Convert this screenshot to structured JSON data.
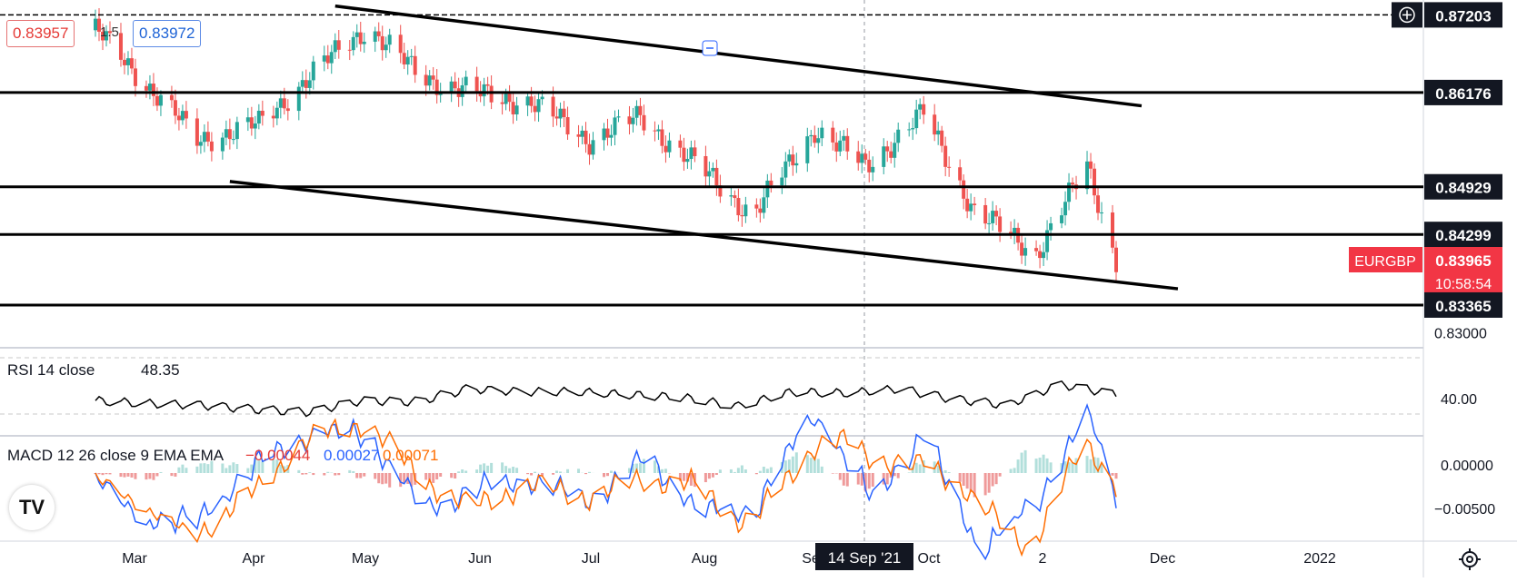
{
  "header": {
    "sell_price": "0.83957",
    "spread": "1.5",
    "buy_price": "0.83972"
  },
  "symbol_badge": "EURGBP",
  "countdown": "10:58:54",
  "crosshair_date": "14 Sep '21",
  "brand": "TV",
  "colors": {
    "up": "#26a69a",
    "down": "#ef5350",
    "macd": "#2962ff",
    "signal": "#ff6d00",
    "badge": "#f23645",
    "label_bg": "#131722"
  },
  "price_levels": [
    {
      "value": "0.87203",
      "plus_icon": "plus-circle-icon"
    },
    {
      "value": "0.86176"
    },
    {
      "value": "0.84929"
    },
    {
      "value": "0.84299"
    },
    {
      "value": "0.83965",
      "current": true
    },
    {
      "value": "0.83365"
    }
  ],
  "price_axis_ticks": [
    "0.83000"
  ],
  "rsi": {
    "label": "RSI 14 close",
    "value": "48.35",
    "axis_tick": "40.00"
  },
  "macd": {
    "label": "MACD 12 26 close 9 EMA EMA",
    "hist": "−0.00044",
    "macd_val": "0.00027",
    "signal_val": "0.00071",
    "axis_ticks": [
      "0.00000",
      "−0.00500"
    ]
  },
  "time_axis": [
    "Mar",
    "Apr",
    "May",
    "Jun",
    "Jul",
    "Aug",
    "Se",
    "Oct",
    "2",
    "Dec",
    "2022"
  ],
  "settings_icon": "gear-icon",
  "chart_data": {
    "type": "line",
    "x": [
      "2021-02-15",
      "2021-03-01",
      "2021-03-15",
      "2021-04-01",
      "2021-04-15",
      "2021-05-01",
      "2021-05-15",
      "2021-06-01",
      "2021-06-15",
      "2021-07-01",
      "2021-07-15",
      "2021-08-01",
      "2021-08-15",
      "2021-09-01",
      "2021-09-15",
      "2021-10-01",
      "2021-10-15",
      "2021-11-01",
      "2021-11-15",
      "2021-11-23"
    ],
    "series": [
      {
        "name": "EURGBP",
        "values": [
          0.87,
          0.863,
          0.8555,
          0.8575,
          0.864,
          0.8705,
          0.864,
          0.8615,
          0.8605,
          0.8555,
          0.8585,
          0.8515,
          0.8455,
          0.857,
          0.852,
          0.859,
          0.846,
          0.8405,
          0.852,
          0.8397
        ]
      }
    ],
    "ylim": [
      0.828,
      0.874
    ],
    "horizontal_levels": [
      0.87203,
      0.86176,
      0.84929,
      0.84299,
      0.83365
    ],
    "trendlines": [
      {
        "from": [
          "2021-04-22",
          0.8732
        ],
        "to": [
          "2021-11-30",
          0.86
        ]
      },
      {
        "from": [
          "2021-03-24",
          0.85
        ],
        "to": [
          "2021-12-10",
          0.8358
        ]
      }
    ],
    "rsi_values": [
      44,
      42,
      41,
      38,
      36,
      44,
      43,
      52,
      50,
      50,
      48,
      46,
      40,
      50,
      49,
      52,
      45,
      41,
      55,
      48.35
    ]
  }
}
